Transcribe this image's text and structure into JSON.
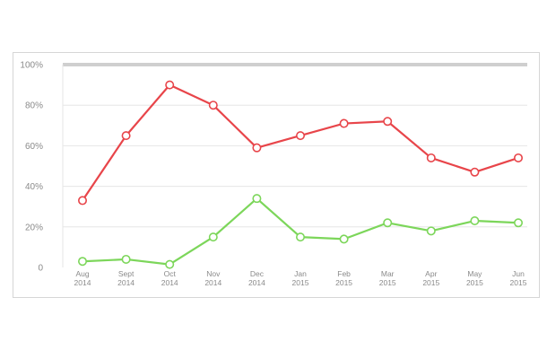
{
  "chart_data": {
    "type": "line",
    "categories": [
      [
        "Aug",
        "2014"
      ],
      [
        "Sept",
        "2014"
      ],
      [
        "Oct",
        "2014"
      ],
      [
        "Nov",
        "2014"
      ],
      [
        "Dec",
        "2014"
      ],
      [
        "Jan",
        "2015"
      ],
      [
        "Feb",
        "2015"
      ],
      [
        "Mar",
        "2015"
      ],
      [
        "Apr",
        "2015"
      ],
      [
        "May",
        "2015"
      ],
      [
        "Jun",
        "2015"
      ]
    ],
    "series": [
      {
        "color": "#e8454a",
        "values": [
          33,
          65,
          90,
          80,
          59,
          65,
          71,
          72,
          54,
          47,
          54
        ]
      },
      {
        "color": "#7cd65a",
        "values": [
          3,
          4,
          1.5,
          15,
          34,
          15,
          14,
          22,
          18,
          23,
          22
        ]
      }
    ],
    "yticks": [
      "0",
      "20%",
      "40%",
      "60%",
      "80%",
      "100%"
    ],
    "ylim": [
      0,
      100
    ],
    "grid": true,
    "gridColor": "#e6e6e6",
    "topBarColor": "#cfcfcf",
    "axisLabelColor": "#8a8a8a",
    "title": "",
    "xlabel": "",
    "ylabel": ""
  }
}
